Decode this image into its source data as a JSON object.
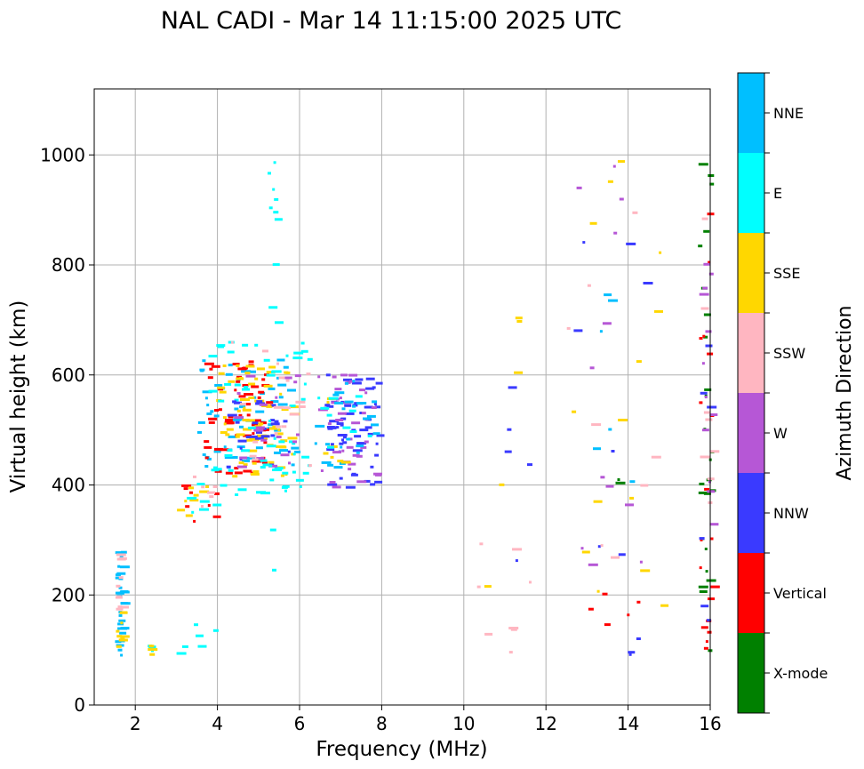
{
  "chart_data": {
    "type": "scatter",
    "title": "NAL CADI - Mar 14 11:15:00 2025 UTC",
    "xlabel": "Frequency (MHz)",
    "ylabel": "Virtual height (km)",
    "xlim": [
      1.0,
      16.0
    ],
    "ylim": [
      0,
      1120
    ],
    "xticks": [
      2,
      4,
      6,
      8,
      10,
      12,
      14,
      16
    ],
    "yticks": [
      0,
      200,
      400,
      600,
      800,
      1000
    ],
    "grid": true,
    "colorbar": {
      "label": "Azimuth Direction",
      "categories": [
        {
          "name": "X-mode",
          "color": "#008000"
        },
        {
          "name": "Vertical",
          "color": "#ff0000"
        },
        {
          "name": "NNW",
          "color": "#3a3aff"
        },
        {
          "name": "W",
          "color": "#b657d6"
        },
        {
          "name": "SSW",
          "color": "#ffb6c1"
        },
        {
          "name": "SSE",
          "color": "#ffd700"
        },
        {
          "name": "E",
          "color": "#00ffff"
        },
        {
          "name": "NNE",
          "color": "#00bfff"
        }
      ]
    },
    "clusters": [
      {
        "direction": "NNE",
        "x_range": [
          1.5,
          1.65
        ],
        "y_range": [
          90,
          280
        ],
        "count": 30
      },
      {
        "direction": "SSW",
        "x_range": [
          1.5,
          1.65
        ],
        "y_range": [
          150,
          280
        ],
        "count": 10
      },
      {
        "direction": "SSE",
        "x_range": [
          1.5,
          1.65
        ],
        "y_range": [
          90,
          180
        ],
        "count": 10
      },
      {
        "direction": "E",
        "x_range": [
          2.2,
          2.4
        ],
        "y_range": [
          88,
          110
        ],
        "count": 5
      },
      {
        "direction": "SSE",
        "x_range": [
          2.2,
          2.4
        ],
        "y_range": [
          88,
          110
        ],
        "count": 4
      },
      {
        "direction": "E",
        "x_range": [
          3.0,
          3.9
        ],
        "y_range": [
          90,
          160
        ],
        "count": 6
      },
      {
        "direction": "Vertical",
        "x_range": [
          3.0,
          4.1
        ],
        "y_range": [
          330,
          420
        ],
        "count": 8
      },
      {
        "direction": "SSE",
        "x_range": [
          3.0,
          4.1
        ],
        "y_range": [
          340,
          420
        ],
        "count": 8
      },
      {
        "direction": "SSW",
        "x_range": [
          3.0,
          4.1
        ],
        "y_range": [
          360,
          420
        ],
        "count": 6
      },
      {
        "direction": "E",
        "x_range": [
          3.1,
          4.1
        ],
        "y_range": [
          350,
          420
        ],
        "count": 6
      },
      {
        "direction": "NNE",
        "x_range": [
          3.5,
          5.9
        ],
        "y_range": [
          430,
          630
        ],
        "count": 60
      },
      {
        "direction": "Vertical",
        "x_range": [
          3.6,
          5.2
        ],
        "y_range": [
          400,
          625
        ],
        "count": 60
      },
      {
        "direction": "SSE",
        "x_range": [
          3.9,
          5.8
        ],
        "y_range": [
          415,
          620
        ],
        "count": 70
      },
      {
        "direction": "E",
        "x_range": [
          3.7,
          6.2
        ],
        "y_range": [
          380,
          665
        ],
        "count": 60
      },
      {
        "direction": "NNW",
        "x_range": [
          4.2,
          5.9
        ],
        "y_range": [
          430,
          560
        ],
        "count": 25
      },
      {
        "direction": "W",
        "x_range": [
          4.4,
          6.0
        ],
        "y_range": [
          430,
          600
        ],
        "count": 20
      },
      {
        "direction": "SSW",
        "x_range": [
          4.0,
          6.4
        ],
        "y_range": [
          420,
          660
        ],
        "count": 20
      },
      {
        "direction": "E",
        "x_range": [
          5.2,
          5.4
        ],
        "y_range": [
          240,
          1015
        ],
        "count": 16
      },
      {
        "direction": "NNW",
        "x_range": [
          6.6,
          7.9
        ],
        "y_range": [
          395,
          600
        ],
        "count": 60
      },
      {
        "direction": "W",
        "x_range": [
          6.4,
          7.9
        ],
        "y_range": [
          395,
          600
        ],
        "count": 40
      },
      {
        "direction": "NNE",
        "x_range": [
          6.3,
          7.9
        ],
        "y_range": [
          430,
          590
        ],
        "count": 25
      },
      {
        "direction": "SSE",
        "x_range": [
          6.3,
          7.1
        ],
        "y_range": [
          440,
          580
        ],
        "count": 8
      },
      {
        "direction": "E",
        "x_range": [
          6.4,
          7.8
        ],
        "y_range": [
          450,
          570
        ],
        "count": 10
      },
      {
        "direction": "SSW",
        "x_range": [
          10.2,
          11.7
        ],
        "y_range": [
          88,
          310
        ],
        "count": 8
      },
      {
        "direction": "NNW",
        "x_range": [
          10.6,
          11.6
        ],
        "y_range": [
          88,
          630
        ],
        "count": 5
      },
      {
        "direction": "SSE",
        "x_range": [
          10.2,
          11.5
        ],
        "y_range": [
          88,
          860
        ],
        "count": 5
      },
      {
        "direction": "NNW",
        "x_range": [
          12.5,
          14.6
        ],
        "y_range": [
          88,
          910
        ],
        "count": 10
      },
      {
        "direction": "W",
        "x_range": [
          12.5,
          14.6
        ],
        "y_range": [
          120,
          990
        ],
        "count": 12
      },
      {
        "direction": "SSW",
        "x_range": [
          12.5,
          14.6
        ],
        "y_range": [
          160,
          1005
        ],
        "count": 8
      },
      {
        "direction": "SSE",
        "x_range": [
          12.5,
          14.8
        ],
        "y_range": [
          140,
          1005
        ],
        "count": 14
      },
      {
        "direction": "NNE",
        "x_range": [
          12.8,
          14.8
        ],
        "y_range": [
          230,
          905
        ],
        "count": 6
      },
      {
        "direction": "Vertical",
        "x_range": [
          12.5,
          14.4
        ],
        "y_range": [
          88,
          210
        ],
        "count": 5
      },
      {
        "direction": "X-mode",
        "x_range": [
          13.6,
          13.9
        ],
        "y_range": [
          400,
          410
        ],
        "count": 2
      },
      {
        "direction": "X-mode",
        "x_range": [
          15.7,
          16.0
        ],
        "y_range": [
          95,
          985
        ],
        "count": 25
      },
      {
        "direction": "Vertical",
        "x_range": [
          15.7,
          16.0
        ],
        "y_range": [
          100,
          920
        ],
        "count": 18
      },
      {
        "direction": "W",
        "x_range": [
          15.7,
          16.0
        ],
        "y_range": [
          300,
          840
        ],
        "count": 12
      },
      {
        "direction": "SSW",
        "x_range": [
          15.7,
          16.0
        ],
        "y_range": [
          200,
          890
        ],
        "count": 8
      },
      {
        "direction": "NNW",
        "x_range": [
          15.7,
          16.0
        ],
        "y_range": [
          150,
          840
        ],
        "count": 6
      }
    ]
  }
}
